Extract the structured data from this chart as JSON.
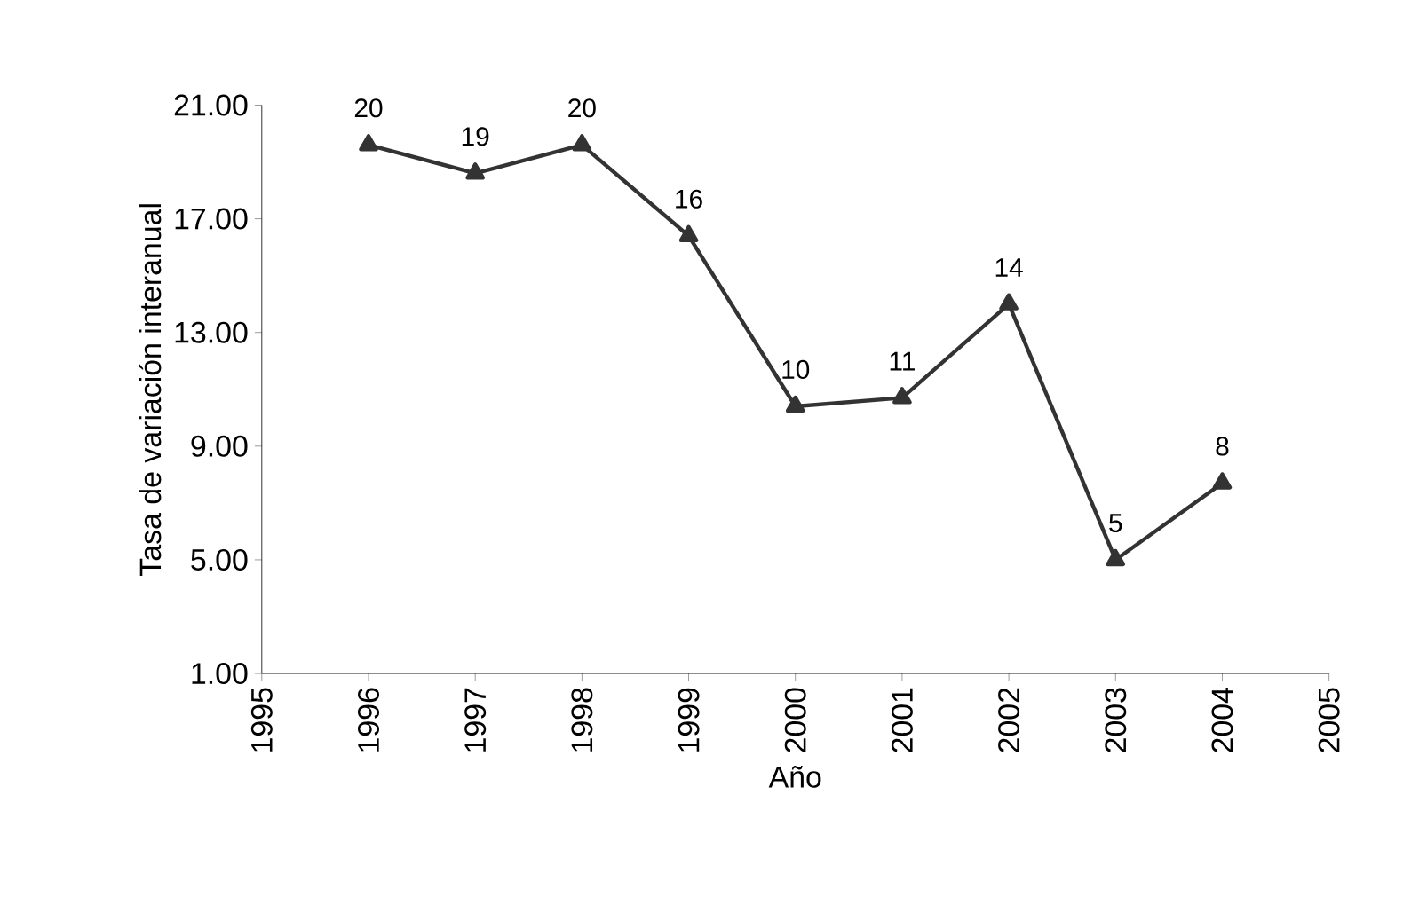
{
  "chart_data": {
    "type": "line",
    "xlabel": "Año",
    "ylabel": "Tasa de variación interanual",
    "x": [
      1996,
      1997,
      1998,
      1999,
      2000,
      2001,
      2002,
      2003,
      2004
    ],
    "series": [
      {
        "color": "#333333",
        "values": [
          19.6,
          18.6,
          19.6,
          16.4,
          10.4,
          10.7,
          14.0,
          5.0,
          7.7
        ],
        "value_labels": [
          "20",
          "19",
          "20",
          "16",
          "10",
          "11",
          "14",
          "5",
          "8"
        ]
      }
    ],
    "xlim": [
      1995,
      2005
    ],
    "xticks": [
      1995,
      1996,
      1997,
      1998,
      1999,
      2000,
      2001,
      2002,
      2003,
      2004,
      2005
    ],
    "ylim": [
      1,
      21
    ],
    "yticks": [
      {
        "value": 1,
        "label": "1.00"
      },
      {
        "value": 5,
        "label": "5.00"
      },
      {
        "value": 9,
        "label": "9.00"
      },
      {
        "value": 13,
        "label": "13.00"
      },
      {
        "value": 17,
        "label": "17.00"
      },
      {
        "value": 21,
        "label": "21.00"
      }
    ],
    "marker": "triangle",
    "line_style": "solid"
  }
}
